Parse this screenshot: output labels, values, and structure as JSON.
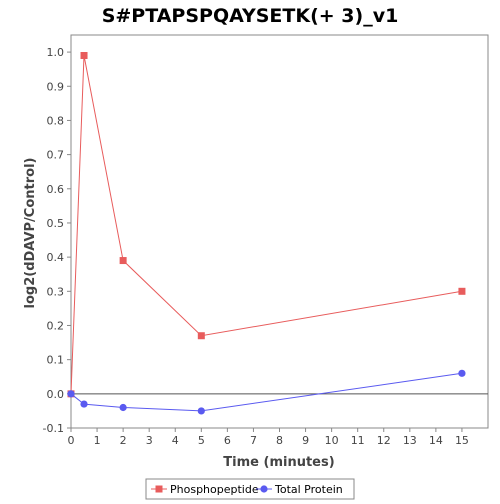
{
  "chart_data": {
    "type": "line",
    "title": "S#PTAPSPQAYSETK(+ 3)_v1",
    "xlabel": "Time (minutes)",
    "ylabel": "log2(dDAVP/Control)",
    "xlim": [
      0,
      16
    ],
    "ylim": [
      -0.1,
      1.05
    ],
    "xticks": [
      "0",
      "1",
      "2",
      "3",
      "4",
      "5",
      "6",
      "7",
      "8",
      "9",
      "10",
      "11",
      "12",
      "13",
      "14",
      "15"
    ],
    "yticks": [
      "-0.1",
      "0.0",
      "0.1",
      "0.2",
      "0.3",
      "0.4",
      "0.5",
      "0.6",
      "0.7",
      "0.8",
      "0.9",
      "1.0"
    ],
    "grid": false,
    "zero_line": true,
    "legend_position": "bottom",
    "series": [
      {
        "name": "Phosphopeptide",
        "marker": "square",
        "color": "#e85c5c",
        "x": [
          0,
          0.5,
          2,
          5,
          15
        ],
        "y": [
          0.0,
          0.99,
          0.39,
          0.17,
          0.3
        ]
      },
      {
        "name": "Total Protein",
        "marker": "circle",
        "color": "#5a5af0",
        "x": [
          0,
          0.5,
          2,
          5,
          15
        ],
        "y": [
          0.0,
          -0.03,
          -0.04,
          -0.05,
          0.06
        ]
      }
    ]
  }
}
